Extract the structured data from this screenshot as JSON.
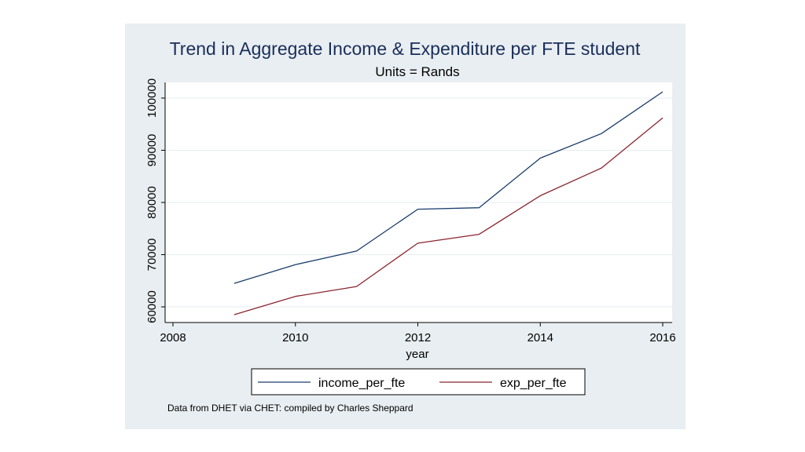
{
  "chart_data": {
    "type": "line",
    "title": "Trend in Aggregate Income & Expenditure per FTE student",
    "subtitle": "Units = Rands",
    "xlabel": "year",
    "ylabel": "",
    "x": [
      2009,
      2010,
      2011,
      2012,
      2013,
      2014,
      2015,
      2016
    ],
    "xlim": [
      2008,
      2016
    ],
    "ylim": [
      57000,
      103000
    ],
    "x_ticks": [
      2008,
      2010,
      2012,
      2014,
      2016
    ],
    "y_ticks": [
      60000,
      70000,
      80000,
      90000,
      100000
    ],
    "x_tick_labels": [
      "2008",
      "2010",
      "2012",
      "2014",
      "2016"
    ],
    "y_tick_labels": [
      "60000",
      "70000",
      "80000",
      "90000",
      "100000"
    ],
    "grid": true,
    "legend_position": "bottom",
    "series": [
      {
        "name": "income_per_fte",
        "color": "#1a3d6b",
        "values": [
          64500,
          68100,
          70700,
          78700,
          79000,
          88500,
          93200,
          101200
        ]
      },
      {
        "name": "exp_per_fte",
        "color": "#8b2530",
        "values": [
          58500,
          62000,
          63900,
          72200,
          73900,
          81300,
          86600,
          96200
        ]
      }
    ],
    "note": "Data from DHET via CHET: compiled by Charles Sheppard"
  }
}
